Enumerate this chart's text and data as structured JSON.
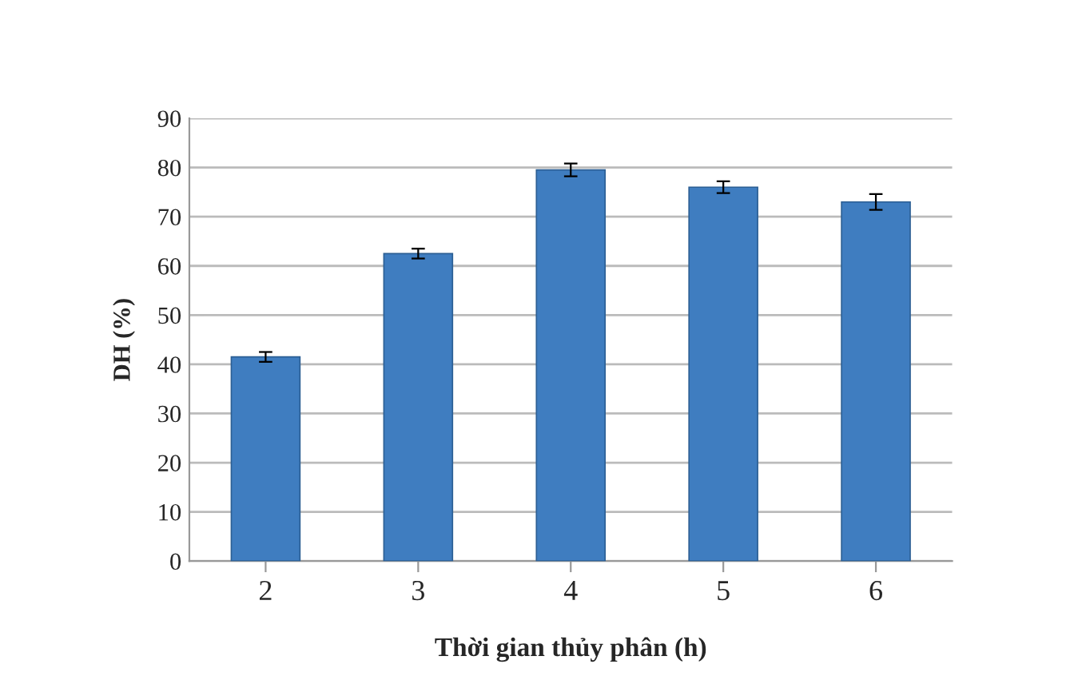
{
  "chart_data": {
    "type": "bar",
    "xlabel": "Thời gian thủy phân (h)",
    "ylabel": "DH (%)",
    "categories": [
      "2",
      "3",
      "4",
      "5",
      "6"
    ],
    "values": [
      41.5,
      62.5,
      79.5,
      76,
      73
    ],
    "errors": [
      1,
      1,
      1.3,
      1.2,
      1.6
    ],
    "color": "#3f7dc0",
    "ylim": [
      0,
      90
    ],
    "yticks": [
      0,
      10,
      20,
      30,
      40,
      50,
      60,
      70,
      80,
      90
    ],
    "grid": "y"
  }
}
